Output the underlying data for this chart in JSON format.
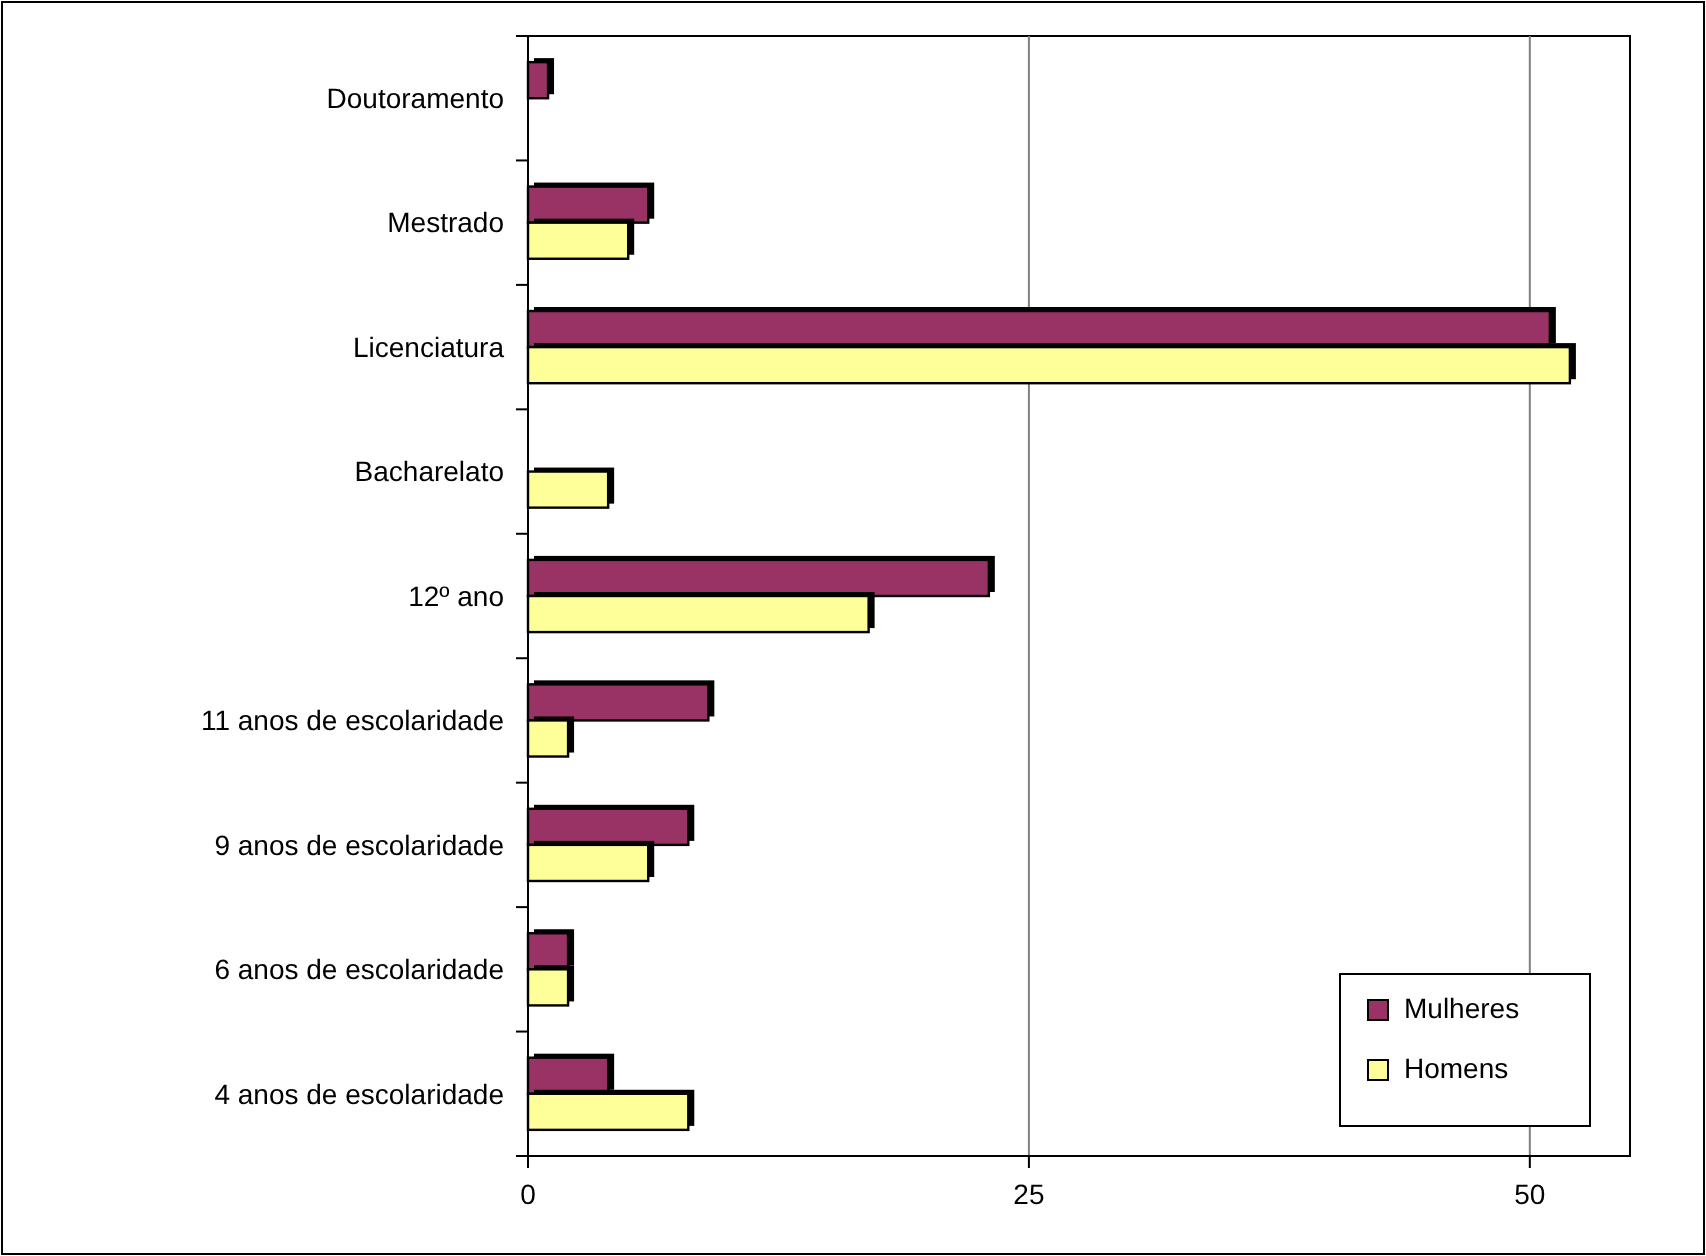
{
  "chart_data": {
    "type": "bar",
    "orientation": "horizontal",
    "categories": [
      "Doutoramento",
      "Mestrado",
      "Licenciatura",
      "Bacharelato",
      "12º ano",
      "11 anos de escolaridade",
      "9 anos de escolaridade",
      "6 anos de escolaridade",
      "4 anos de escolaridade"
    ],
    "series": [
      {
        "name": "Mulheres",
        "color": "#993366",
        "values": [
          1,
          6,
          51,
          0,
          23,
          9,
          8,
          2,
          4
        ]
      },
      {
        "name": "Homens",
        "color": "#ffff99",
        "values": [
          0,
          5,
          52,
          4,
          17,
          2,
          6,
          2,
          8
        ]
      }
    ],
    "xlim": [
      0,
      55
    ],
    "xticks": [
      0,
      25,
      50
    ],
    "grid": "x",
    "legend": "bottom right"
  }
}
